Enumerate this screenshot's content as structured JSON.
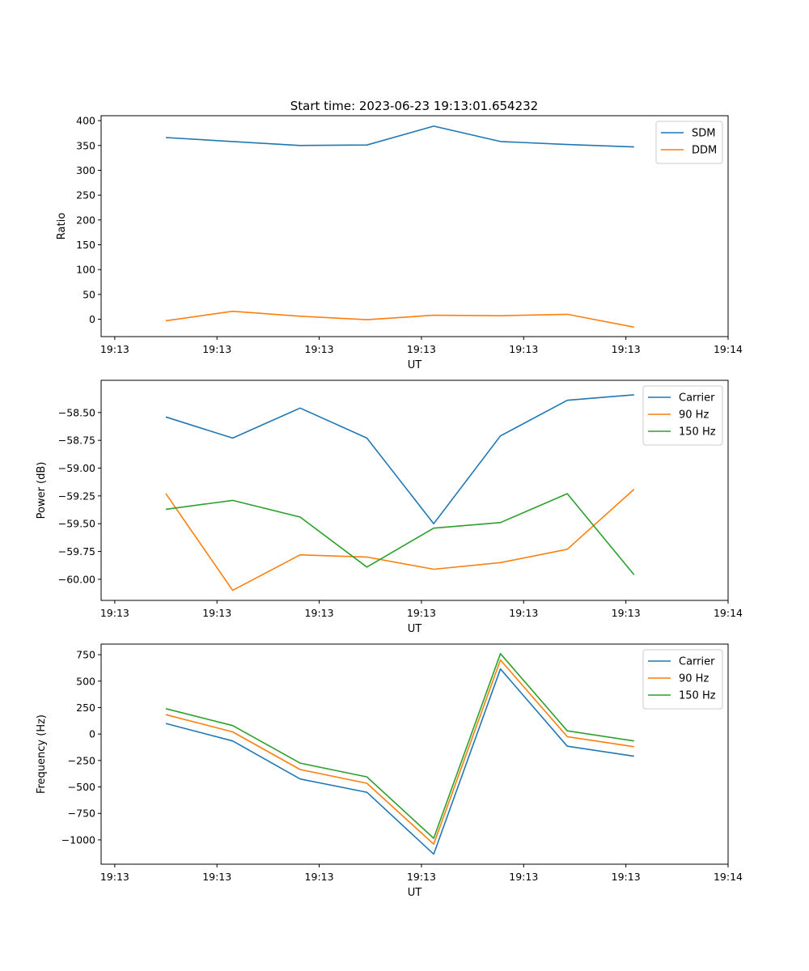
{
  "figure_title": "Start time: 2023-06-23 19:13:01.654232",
  "colors": {
    "blue": "#1f77b4",
    "orange": "#ff7f0e",
    "green": "#2ca02c"
  },
  "chart_data": [
    {
      "type": "line",
      "xlabel": "UT",
      "ylabel": "Ratio",
      "ylim": [
        -35,
        410
      ],
      "yticks": [
        0,
        50,
        100,
        150,
        200,
        250,
        300,
        350,
        400
      ],
      "ytick_labels": [
        "0",
        "50",
        "100",
        "150",
        "200",
        "250",
        "300",
        "350",
        "400"
      ],
      "xlim": [
        0,
        9.2
      ],
      "xticks": [
        0.2,
        1.7,
        3.2,
        4.7,
        6.2,
        7.7,
        9.2
      ],
      "xtick_labels": [
        "19:13",
        "19:13",
        "19:13",
        "19:13",
        "19:13",
        "19:13",
        "19:14"
      ],
      "x": [
        0.95,
        1.93,
        2.92,
        3.9,
        4.88,
        5.86,
        6.84,
        7.82
      ],
      "legend_position": "upper right",
      "series": [
        {
          "name": "SDM",
          "color": "#1f77b4",
          "values": [
            366,
            358,
            350,
            351,
            389,
            358,
            352,
            347
          ]
        },
        {
          "name": "DDM",
          "color": "#ff7f0e",
          "values": [
            -3,
            16,
            6,
            -1,
            8,
            7,
            10,
            -16
          ]
        }
      ]
    },
    {
      "type": "line",
      "xlabel": "UT",
      "ylabel": "Power (dB)",
      "ylim": [
        -60.19,
        -58.21
      ],
      "yticks": [
        -60.0,
        -59.75,
        -59.5,
        -59.25,
        -59.0,
        -58.75,
        -58.5
      ],
      "ytick_labels": [
        "−60.00",
        "−59.75",
        "−59.50",
        "−59.25",
        "−59.00",
        "−58.75",
        "−58.50"
      ],
      "xlim": [
        0,
        9.2
      ],
      "xticks": [
        0.2,
        1.7,
        3.2,
        4.7,
        6.2,
        7.7,
        9.2
      ],
      "xtick_labels": [
        "19:13",
        "19:13",
        "19:13",
        "19:13",
        "19:13",
        "19:13",
        "19:14"
      ],
      "x": [
        0.95,
        1.93,
        2.92,
        3.9,
        4.88,
        5.86,
        6.84,
        7.82
      ],
      "legend_position": "upper right",
      "series": [
        {
          "name": "Carrier",
          "color": "#1f77b4",
          "values": [
            -58.54,
            -58.73,
            -58.46,
            -58.73,
            -59.5,
            -58.71,
            -58.39,
            -58.34
          ]
        },
        {
          "name": "90 Hz",
          "color": "#ff7f0e",
          "values": [
            -59.23,
            -60.1,
            -59.78,
            -59.8,
            -59.91,
            -59.85,
            -59.73,
            -59.19
          ]
        },
        {
          "name": "150 Hz",
          "color": "#2ca02c",
          "values": [
            -59.37,
            -59.29,
            -59.44,
            -59.89,
            -59.54,
            -59.49,
            -59.23,
            -59.96
          ]
        }
      ]
    },
    {
      "type": "line",
      "xlabel": "UT",
      "ylabel": "Frequency (Hz)",
      "ylim": [
        -1230,
        850
      ],
      "yticks": [
        -1000,
        -750,
        -500,
        -250,
        0,
        250,
        500,
        750
      ],
      "ytick_labels": [
        "−1000",
        "−750",
        "−500",
        "−250",
        "0",
        "250",
        "500",
        "750"
      ],
      "xlim": [
        0,
        9.2
      ],
      "xticks": [
        0.2,
        1.7,
        3.2,
        4.7,
        6.2,
        7.7,
        9.2
      ],
      "xtick_labels": [
        "19:13",
        "19:13",
        "19:13",
        "19:13",
        "19:13",
        "19:13",
        "19:14"
      ],
      "x": [
        0.95,
        1.93,
        2.92,
        3.9,
        4.88,
        5.86,
        6.84,
        7.82
      ],
      "legend_position": "upper right",
      "series": [
        {
          "name": "Carrier",
          "color": "#1f77b4",
          "values": [
            100,
            -65,
            -425,
            -550,
            -1135,
            615,
            -115,
            -210
          ]
        },
        {
          "name": "90 Hz",
          "color": "#ff7f0e",
          "values": [
            183,
            20,
            -335,
            -465,
            -1040,
            700,
            -25,
            -120
          ]
        },
        {
          "name": "150 Hz",
          "color": "#2ca02c",
          "values": [
            240,
            80,
            -275,
            -405,
            -985,
            760,
            30,
            -65
          ]
        }
      ]
    }
  ]
}
